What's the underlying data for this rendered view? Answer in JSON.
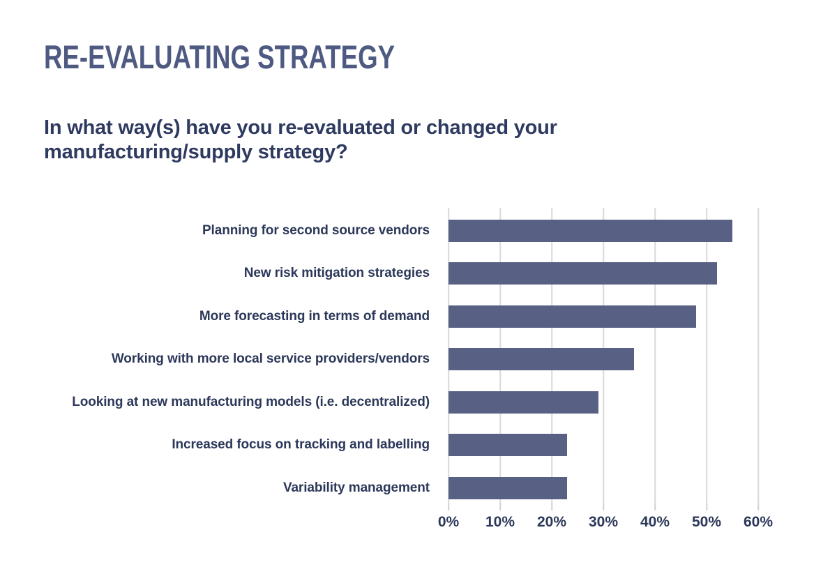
{
  "page": {
    "background_color": "#ffffff"
  },
  "header": {
    "title": "RE-EVALUATING STRATEGY",
    "title_color": "#4e5a81"
  },
  "question": {
    "text": "In what way(s) have you re-evaluated or changed your manufacturing/supply strategy?",
    "text_color": "#2f3a60"
  },
  "chart_data": {
    "type": "bar",
    "orientation": "horizontal",
    "categories": [
      "Planning for second source vendors",
      "New risk mitigation strategies",
      "More forecasting in terms of demand",
      "Working with more local service providers/vendors",
      "Looking at new manufacturing models (i.e. decentralized)",
      "Increased focus on tracking and labelling",
      "Variability management"
    ],
    "values": [
      55,
      52,
      48,
      36,
      29,
      23,
      23
    ],
    "unit": "%",
    "xlabel": "",
    "ylabel": "",
    "xlim": [
      0,
      60
    ],
    "x_ticks": [
      0,
      10,
      20,
      30,
      40,
      50,
      60
    ],
    "x_tick_labels": [
      "0%",
      "10%",
      "20%",
      "30%",
      "40%",
      "50%",
      "60%"
    ],
    "grid": "vertical",
    "legend": "none",
    "bar_color": "#586184",
    "label_color": "#2c3859",
    "gridline_color": "#d9d9d9"
  }
}
